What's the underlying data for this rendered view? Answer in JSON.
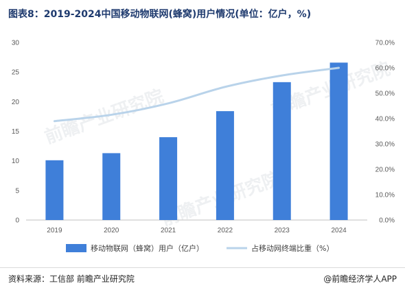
{
  "title": "图表8：2019-2024中国移动物联网(蜂窝)用户情况(单位：亿户，%)",
  "source": "资料来源：工信部 前瞻产业研究院",
  "brand": "@前瞻经济学人APP",
  "watermark": "前瞻产业研究院",
  "colors": {
    "bar": "#3f7fd9",
    "line": "#b9d3ea",
    "title": "#1e3a6e"
  },
  "chart_data": {
    "type": "bar",
    "categories": [
      "2019",
      "2020",
      "2021",
      "2022",
      "2023",
      "2024"
    ],
    "series": [
      {
        "name": "移动物联网（蜂窝）用户（亿户）",
        "type": "bar",
        "axis": "left",
        "values": [
          10.1,
          11.3,
          14.0,
          18.4,
          23.3,
          26.6
        ]
      },
      {
        "name": "占移动网终端比重（%）",
        "type": "line",
        "axis": "right",
        "values": [
          39.0,
          41.5,
          46.0,
          52.5,
          57.0,
          60.0
        ]
      }
    ],
    "ylim_left": [
      0,
      30
    ],
    "yticks_left": [
      "0",
      "5",
      "10",
      "15",
      "20",
      "25",
      "30"
    ],
    "ylim_right": [
      0,
      70
    ],
    "yticks_right": [
      "0.0%",
      "10.0%",
      "20.0%",
      "30.0%",
      "40.0%",
      "50.0%",
      "60.0%",
      "70.0%"
    ],
    "grid": false,
    "legend": "bottom"
  }
}
